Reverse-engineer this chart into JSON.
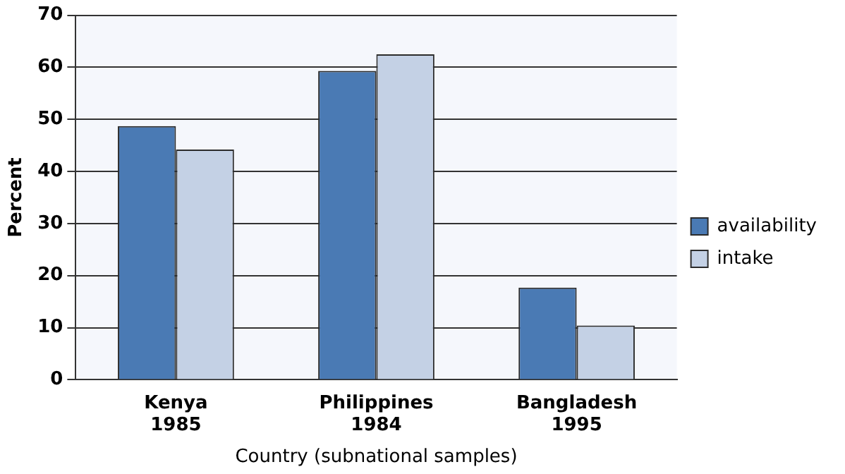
{
  "chart_data": {
    "type": "bar",
    "xlabel": "Country (subnational samples)",
    "ylabel": "Percent",
    "categories": [
      "Kenya\n1985",
      "Philippines\n1984",
      "Bangladesh\n1995"
    ],
    "series": [
      {
        "name": "availability",
        "color": "#4a7ab4",
        "values": [
          48.7,
          59.3,
          17.7
        ]
      },
      {
        "name": "intake",
        "color": "#c4d1e5",
        "values": [
          44.2,
          62.5,
          10.4
        ]
      }
    ],
    "ylim": [
      0,
      70
    ],
    "yticks": [
      0,
      10,
      20,
      30,
      40,
      50,
      60,
      70
    ],
    "grid": "y",
    "legend": "right"
  }
}
